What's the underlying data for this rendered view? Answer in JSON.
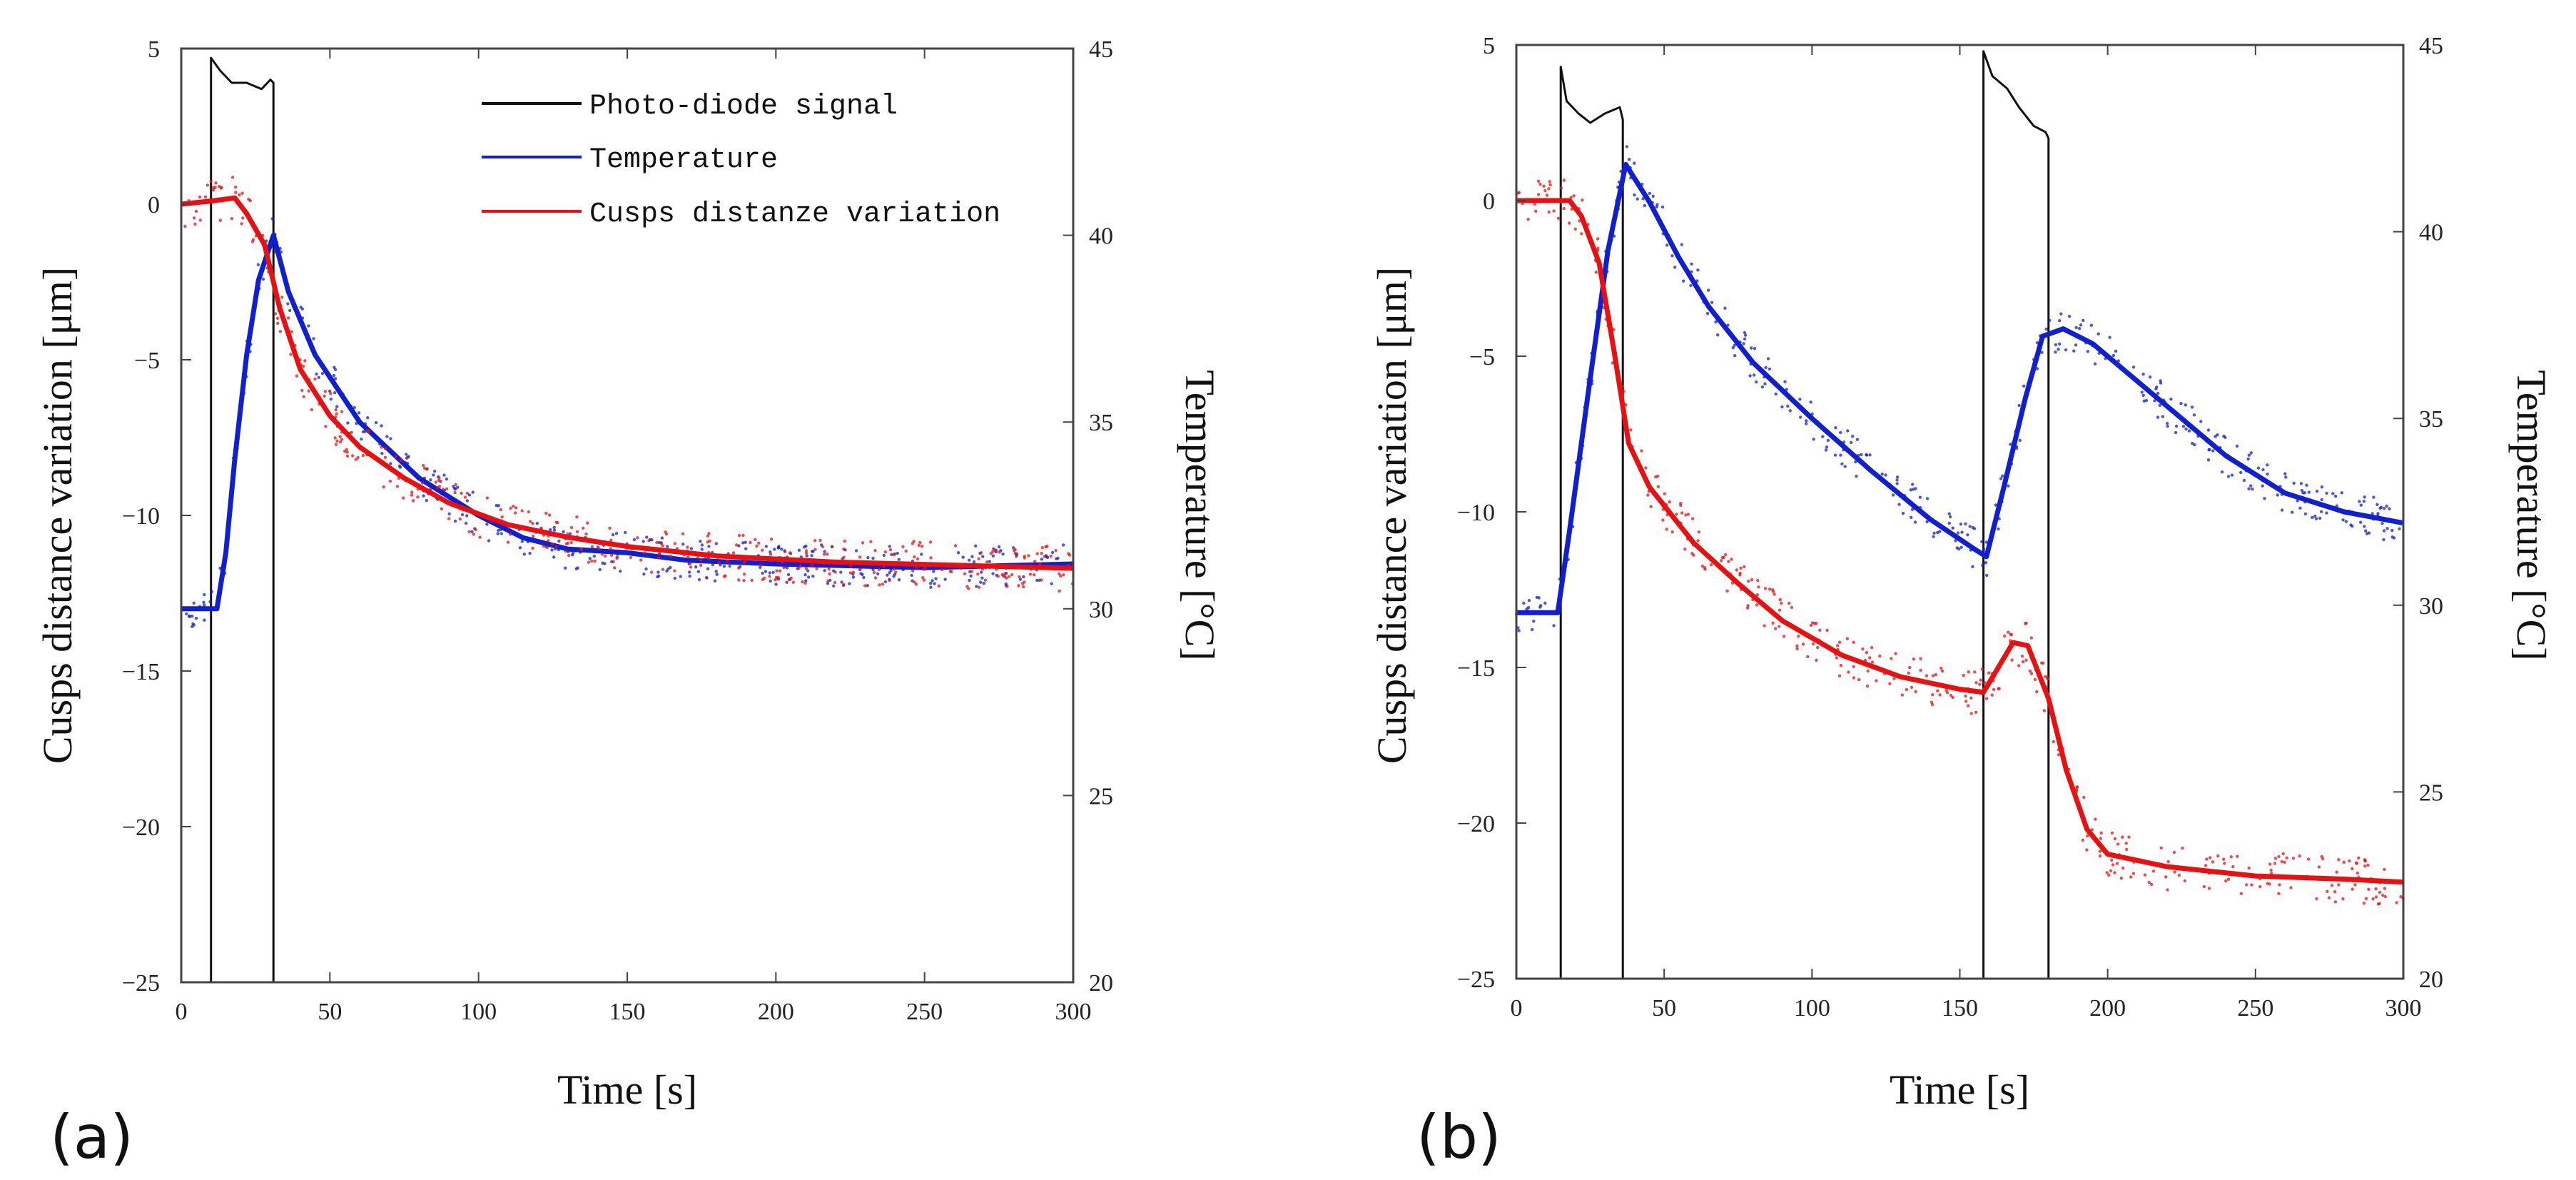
{
  "chart_data": [
    {
      "type": "line",
      "panel_label": "(a)",
      "xlabel": "Time [s]",
      "ylabel_left": "Cusps distance variation [μm]",
      "ylabel_right": "Temperature [°C]",
      "xlim": [
        0,
        300
      ],
      "ylim_left": [
        -25,
        5
      ],
      "ylim_right": [
        20,
        45
      ],
      "x_ticks": [
        "0",
        "50",
        "100",
        "150",
        "200",
        "250",
        "300"
      ],
      "y_left_ticks": [
        "5",
        "0",
        "−5",
        "−10",
        "−15",
        "−20",
        "−25"
      ],
      "y_right_ticks": [
        "45",
        "40",
        "35",
        "30",
        "25",
        "20"
      ],
      "legend": [
        "Photo-diode signal",
        "Temperature",
        "Cusps distanze variation"
      ],
      "series": [
        {
          "name": "Photo-diode signal",
          "axis": "left",
          "color": "#111111",
          "points": [
            [
              0,
              -25
            ],
            [
              10,
              -25
            ],
            [
              10,
              4.7
            ],
            [
              13,
              4.3
            ],
            [
              17,
              3.9
            ],
            [
              22,
              3.9
            ],
            [
              27,
              3.7
            ],
            [
              30,
              4.0
            ],
            [
              31,
              3.9
            ],
            [
              31,
              -25
            ],
            [
              300,
              -25
            ]
          ]
        },
        {
          "name": "Temperature",
          "axis": "right",
          "color": "#1020d0",
          "points": [
            [
              0,
              30.0
            ],
            [
              12,
              30.0
            ],
            [
              15,
              31.5
            ],
            [
              18,
              34.0
            ],
            [
              22,
              36.8
            ],
            [
              26,
              38.8
            ],
            [
              31,
              40.0
            ],
            [
              36,
              38.5
            ],
            [
              45,
              36.8
            ],
            [
              60,
              35.0
            ],
            [
              80,
              33.5
            ],
            [
              100,
              32.5
            ],
            [
              115,
              31.9
            ],
            [
              130,
              31.6
            ],
            [
              150,
              31.5
            ],
            [
              170,
              31.3
            ],
            [
              200,
              31.2
            ],
            [
              250,
              31.1
            ],
            [
              300,
              31.2
            ]
          ]
        },
        {
          "name": "Cusps distanze variation",
          "axis": "left",
          "color": "#e81010",
          "points": [
            [
              0,
              0.0
            ],
            [
              10,
              0.1
            ],
            [
              18,
              0.2
            ],
            [
              22,
              -0.3
            ],
            [
              28,
              -1.3
            ],
            [
              33,
              -3.3
            ],
            [
              40,
              -5.3
            ],
            [
              50,
              -6.8
            ],
            [
              60,
              -7.8
            ],
            [
              75,
              -8.8
            ],
            [
              90,
              -9.6
            ],
            [
              110,
              -10.3
            ],
            [
              130,
              -10.7
            ],
            [
              150,
              -11.0
            ],
            [
              180,
              -11.3
            ],
            [
              220,
              -11.5
            ],
            [
              260,
              -11.6
            ],
            [
              300,
              -11.7
            ]
          ]
        }
      ]
    },
    {
      "type": "line",
      "panel_label": "(b)",
      "xlabel": "Time [s]",
      "ylabel_left": "Cusps distance variation [μm]",
      "ylabel_right": "Temperature [°C]",
      "xlim": [
        0,
        300
      ],
      "ylim_left": [
        -25,
        5
      ],
      "ylim_right": [
        20,
        45
      ],
      "x_ticks": [
        "0",
        "50",
        "100",
        "150",
        "200",
        "250",
        "300"
      ],
      "y_left_ticks": [
        "5",
        "0",
        "−5",
        "−10",
        "−15",
        "−20",
        "−25"
      ],
      "y_right_ticks": [
        "45",
        "40",
        "35",
        "30",
        "25",
        "20"
      ],
      "series": [
        {
          "name": "Photo-diode signal",
          "axis": "left",
          "color": "#111111",
          "points": [
            [
              0,
              -25
            ],
            [
              15,
              -25
            ],
            [
              15,
              4.3
            ],
            [
              17,
              3.2
            ],
            [
              21,
              2.8
            ],
            [
              25,
              2.5
            ],
            [
              30,
              2.8
            ],
            [
              35,
              3.0
            ],
            [
              36,
              2.6
            ],
            [
              36,
              -25
            ],
            [
              158,
              -25
            ],
            [
              158,
              4.8
            ],
            [
              161,
              4.0
            ],
            [
              166,
              3.6
            ],
            [
              170,
              3.0
            ],
            [
              175,
              2.4
            ],
            [
              179,
              2.2
            ],
            [
              180,
              2.0
            ],
            [
              180,
              -25
            ],
            [
              300,
              -25
            ]
          ]
        },
        {
          "name": "Temperature",
          "axis": "right",
          "color": "#1020d0",
          "points": [
            [
              0,
              29.8
            ],
            [
              14,
              29.8
            ],
            [
              18,
              32.0
            ],
            [
              24,
              35.5
            ],
            [
              31,
              39.5
            ],
            [
              37,
              41.8
            ],
            [
              45,
              40.8
            ],
            [
              55,
              39.3
            ],
            [
              65,
              38.0
            ],
            [
              80,
              36.5
            ],
            [
              100,
              35.0
            ],
            [
              120,
              33.6
            ],
            [
              140,
              32.3
            ],
            [
              155,
              31.5
            ],
            [
              159,
              31.3
            ],
            [
              165,
              33.2
            ],
            [
              172,
              35.5
            ],
            [
              178,
              37.2
            ],
            [
              185,
              37.4
            ],
            [
              195,
              37.0
            ],
            [
              210,
              36.0
            ],
            [
              225,
              35.0
            ],
            [
              240,
              34.0
            ],
            [
              260,
              33.0
            ],
            [
              280,
              32.5
            ],
            [
              300,
              32.2
            ]
          ]
        },
        {
          "name": "Cusps distanze variation",
          "axis": "left",
          "color": "#e81010",
          "points": [
            [
              0,
              0.0
            ],
            [
              18,
              0.0
            ],
            [
              22,
              -0.5
            ],
            [
              28,
              -2.0
            ],
            [
              33,
              -4.8
            ],
            [
              38,
              -7.8
            ],
            [
              45,
              -9.2
            ],
            [
              60,
              -11.0
            ],
            [
              75,
              -12.3
            ],
            [
              90,
              -13.5
            ],
            [
              110,
              -14.6
            ],
            [
              130,
              -15.3
            ],
            [
              150,
              -15.7
            ],
            [
              158,
              -15.8
            ],
            [
              163,
              -15.0
            ],
            [
              168,
              -14.2
            ],
            [
              173,
              -14.3
            ],
            [
              180,
              -16.0
            ],
            [
              186,
              -18.3
            ],
            [
              193,
              -20.2
            ],
            [
              200,
              -21.0
            ],
            [
              220,
              -21.4
            ],
            [
              250,
              -21.7
            ],
            [
              280,
              -21.8
            ],
            [
              300,
              -21.9
            ]
          ]
        }
      ]
    }
  ]
}
